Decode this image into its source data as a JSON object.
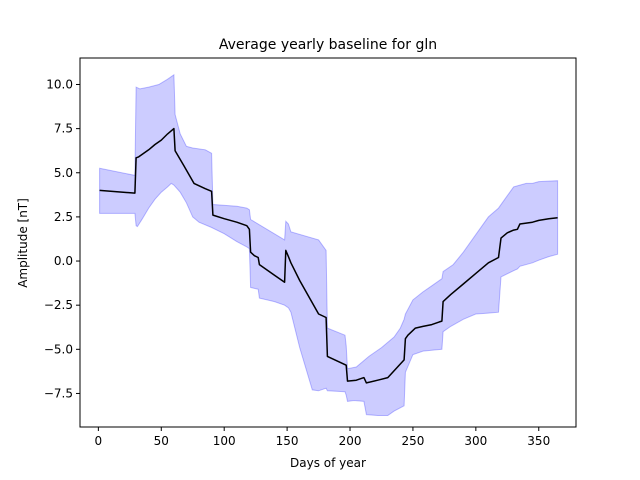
{
  "chart_data": {
    "type": "line",
    "title": "Average yearly baseline for gln",
    "xlabel": "Days of year",
    "ylabel": "Amplitude [nT]",
    "xlim": [
      -14.6,
      379.6
    ],
    "ylim": [
      -9.4,
      11.5
    ],
    "x_ticks": [
      0,
      50,
      100,
      150,
      200,
      250,
      300,
      350
    ],
    "x_tick_labels": [
      "0",
      "50",
      "100",
      "150",
      "200",
      "250",
      "300",
      "350"
    ],
    "y_ticks": [
      -7.5,
      -5.0,
      -2.5,
      0.0,
      2.5,
      5.0,
      7.5,
      10.0
    ],
    "y_tick_labels": [
      "−7.5",
      "−5.0",
      "−2.5",
      "0.0",
      "2.5",
      "5.0",
      "7.5",
      "10.0"
    ],
    "grid": false,
    "colors": {
      "line": "#000000",
      "band": "#0000ff",
      "band_opacity": 0.2
    },
    "series": [
      {
        "values": [
          [
            1,
            4.0
          ],
          [
            29,
            3.85
          ],
          [
            30,
            5.85
          ],
          [
            32,
            5.9
          ],
          [
            40,
            6.3
          ],
          [
            45,
            6.6
          ],
          [
            50,
            6.85
          ],
          [
            55,
            7.2
          ],
          [
            60,
            7.5
          ],
          [
            61,
            6.25
          ],
          [
            68,
            5.4
          ],
          [
            76,
            4.4
          ],
          [
            85,
            4.1
          ],
          [
            90,
            3.95
          ],
          [
            91,
            2.6
          ],
          [
            100,
            2.4
          ],
          [
            110,
            2.2
          ],
          [
            118,
            2.0
          ],
          [
            120,
            1.8
          ],
          [
            121,
            0.5
          ],
          [
            124,
            0.3
          ],
          [
            127,
            0.2
          ],
          [
            128,
            -0.2
          ],
          [
            140,
            -0.8
          ],
          [
            148,
            -1.2
          ],
          [
            149,
            0.6
          ],
          [
            151,
            0.25
          ],
          [
            153,
            -0.1
          ],
          [
            160,
            -1.1
          ],
          [
            175,
            -3.0
          ],
          [
            181,
            -3.2
          ],
          [
            182,
            -5.4
          ],
          [
            197,
            -5.9
          ],
          [
            198,
            -6.8
          ],
          [
            205,
            -6.75
          ],
          [
            211,
            -6.6
          ],
          [
            213,
            -6.9
          ],
          [
            222,
            -6.75
          ],
          [
            230,
            -6.6
          ],
          [
            243,
            -5.6
          ],
          [
            244,
            -4.4
          ],
          [
            246,
            -4.2
          ],
          [
            252,
            -3.8
          ],
          [
            258,
            -3.7
          ],
          [
            265,
            -3.6
          ],
          [
            271,
            -3.45
          ],
          [
            273,
            -3.4
          ],
          [
            274,
            -2.3
          ],
          [
            280,
            -1.9
          ],
          [
            290,
            -1.3
          ],
          [
            300,
            -0.7
          ],
          [
            310,
            -0.1
          ],
          [
            318,
            0.2
          ],
          [
            320,
            1.3
          ],
          [
            325,
            1.6
          ],
          [
            330,
            1.75
          ],
          [
            333,
            1.8
          ],
          [
            335,
            2.1
          ],
          [
            345,
            2.2
          ],
          [
            350,
            2.3
          ],
          [
            358,
            2.4
          ],
          [
            365,
            2.45
          ]
        ]
      }
    ],
    "band": {
      "upper": [
        [
          1,
          5.25
        ],
        [
          29,
          4.85
        ],
        [
          30,
          9.85
        ],
        [
          33,
          9.75
        ],
        [
          40,
          9.85
        ],
        [
          48,
          10.0
        ],
        [
          55,
          10.3
        ],
        [
          60,
          10.55
        ],
        [
          61,
          8.3
        ],
        [
          65,
          7.2
        ],
        [
          70,
          6.5
        ],
        [
          75,
          6.4
        ],
        [
          85,
          6.3
        ],
        [
          90,
          6.1
        ],
        [
          91,
          3.2
        ],
        [
          110,
          3.1
        ],
        [
          118,
          3.0
        ],
        [
          120,
          2.9
        ],
        [
          121,
          2.35
        ],
        [
          148,
          1.2
        ],
        [
          149,
          2.25
        ],
        [
          151,
          2.1
        ],
        [
          153,
          1.65
        ],
        [
          175,
          1.2
        ],
        [
          181,
          0.6
        ],
        [
          182,
          -3.8
        ],
        [
          196,
          -4.2
        ],
        [
          197,
          -4.8
        ],
        [
          198,
          -6.1
        ],
        [
          205,
          -6.0
        ],
        [
          215,
          -5.4
        ],
        [
          225,
          -4.9
        ],
        [
          235,
          -4.3
        ],
        [
          240,
          -3.8
        ],
        [
          243,
          -3.3
        ],
        [
          244,
          -3.0
        ],
        [
          250,
          -2.2
        ],
        [
          258,
          -1.75
        ],
        [
          265,
          -1.4
        ],
        [
          273,
          -1.0
        ],
        [
          274,
          -0.6
        ],
        [
          282,
          -0.2
        ],
        [
          290,
          0.5
        ],
        [
          300,
          1.5
        ],
        [
          310,
          2.5
        ],
        [
          318,
          3.0
        ],
        [
          325,
          3.7
        ],
        [
          330,
          4.2
        ],
        [
          335,
          4.3
        ],
        [
          340,
          4.4
        ],
        [
          345,
          4.4
        ],
        [
          350,
          4.5
        ],
        [
          365,
          4.55
        ]
      ],
      "lower": [
        [
          1,
          2.7
        ],
        [
          29,
          2.7
        ],
        [
          30,
          2.0
        ],
        [
          31,
          1.95
        ],
        [
          35,
          2.4
        ],
        [
          40,
          3.0
        ],
        [
          45,
          3.5
        ],
        [
          50,
          3.9
        ],
        [
          55,
          4.2
        ],
        [
          58,
          4.4
        ],
        [
          60,
          4.3
        ],
        [
          65,
          3.9
        ],
        [
          70,
          3.3
        ],
        [
          75,
          2.5
        ],
        [
          80,
          2.2
        ],
        [
          90,
          1.9
        ],
        [
          100,
          1.55
        ],
        [
          110,
          1.1
        ],
        [
          118,
          0.8
        ],
        [
          120,
          0.7
        ],
        [
          121,
          -1.5
        ],
        [
          124,
          -1.55
        ],
        [
          127,
          -1.6
        ],
        [
          128,
          -2.1
        ],
        [
          140,
          -2.3
        ],
        [
          148,
          -2.5
        ],
        [
          151,
          -2.65
        ],
        [
          153,
          -2.9
        ],
        [
          160,
          -4.9
        ],
        [
          170,
          -7.3
        ],
        [
          175,
          -7.35
        ],
        [
          181,
          -7.2
        ],
        [
          182,
          -7.35
        ],
        [
          196,
          -7.4
        ],
        [
          197,
          -7.6
        ],
        [
          198,
          -7.95
        ],
        [
          203,
          -7.9
        ],
        [
          211,
          -7.95
        ],
        [
          213,
          -8.7
        ],
        [
          222,
          -8.75
        ],
        [
          230,
          -8.75
        ],
        [
          235,
          -8.5
        ],
        [
          243,
          -8.2
        ],
        [
          244,
          -6.3
        ],
        [
          250,
          -5.3
        ],
        [
          258,
          -5.1
        ],
        [
          265,
          -5.05
        ],
        [
          273,
          -5.0
        ],
        [
          274,
          -4.0
        ],
        [
          280,
          -3.7
        ],
        [
          290,
          -3.3
        ],
        [
          300,
          -3.0
        ],
        [
          310,
          -2.95
        ],
        [
          318,
          -2.9
        ],
        [
          320,
          -0.9
        ],
        [
          330,
          -0.55
        ],
        [
          333,
          -0.45
        ],
        [
          335,
          -0.3
        ],
        [
          345,
          -0.1
        ],
        [
          350,
          0.05
        ],
        [
          358,
          0.25
        ],
        [
          365,
          0.38
        ]
      ]
    }
  }
}
